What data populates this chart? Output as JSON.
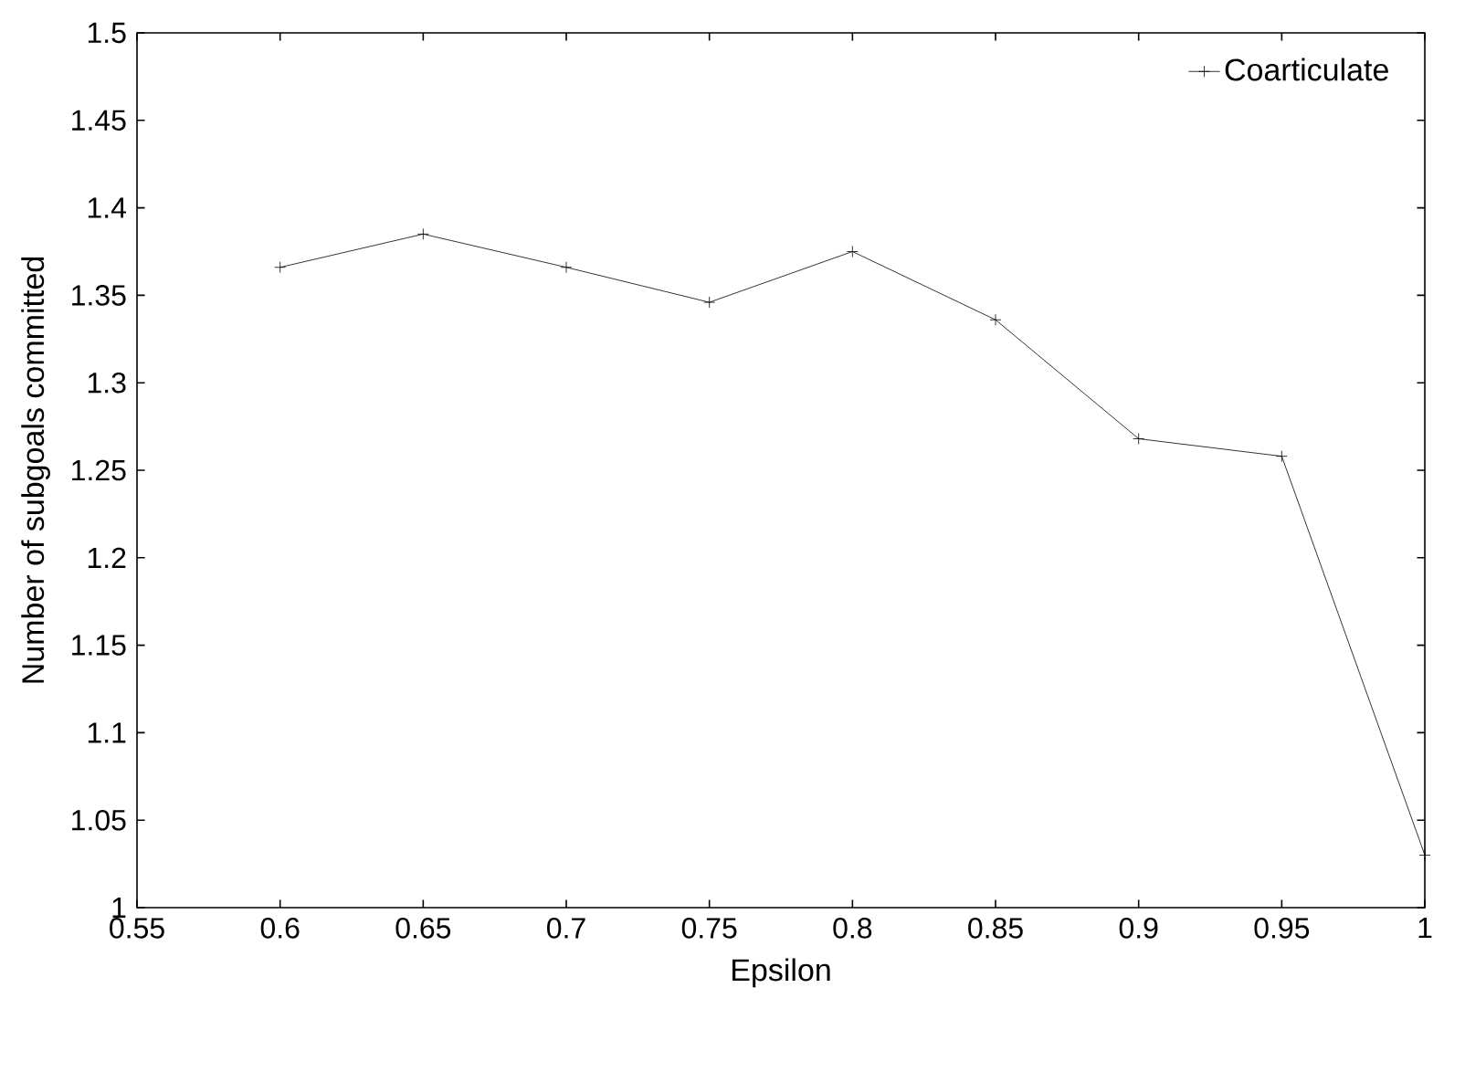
{
  "chart_data": {
    "type": "line",
    "xlabel": "Epsilon",
    "ylabel": "Number of subgoals committed",
    "x": [
      0.6,
      0.65,
      0.7,
      0.75,
      0.8,
      0.85,
      0.9,
      0.95,
      1
    ],
    "series": [
      {
        "name": "Coarticulate",
        "color": "#000000",
        "values": [
          1.366,
          1.385,
          1.366,
          1.346,
          1.375,
          1.336,
          1.268,
          1.258,
          1.03
        ]
      }
    ],
    "xlim": [
      0.55,
      1
    ],
    "ylim": [
      1,
      1.5
    ],
    "xticks": [
      0.55,
      0.6,
      0.65,
      0.7,
      0.75,
      0.8,
      0.85,
      0.9,
      0.95,
      1
    ],
    "yticks": [
      1,
      1.05,
      1.1,
      1.15,
      1.2,
      1.25,
      1.3,
      1.35,
      1.4,
      1.45,
      1.5
    ],
    "legend": "top right",
    "marker": "cross",
    "line_style": "solid",
    "grid": false
  }
}
